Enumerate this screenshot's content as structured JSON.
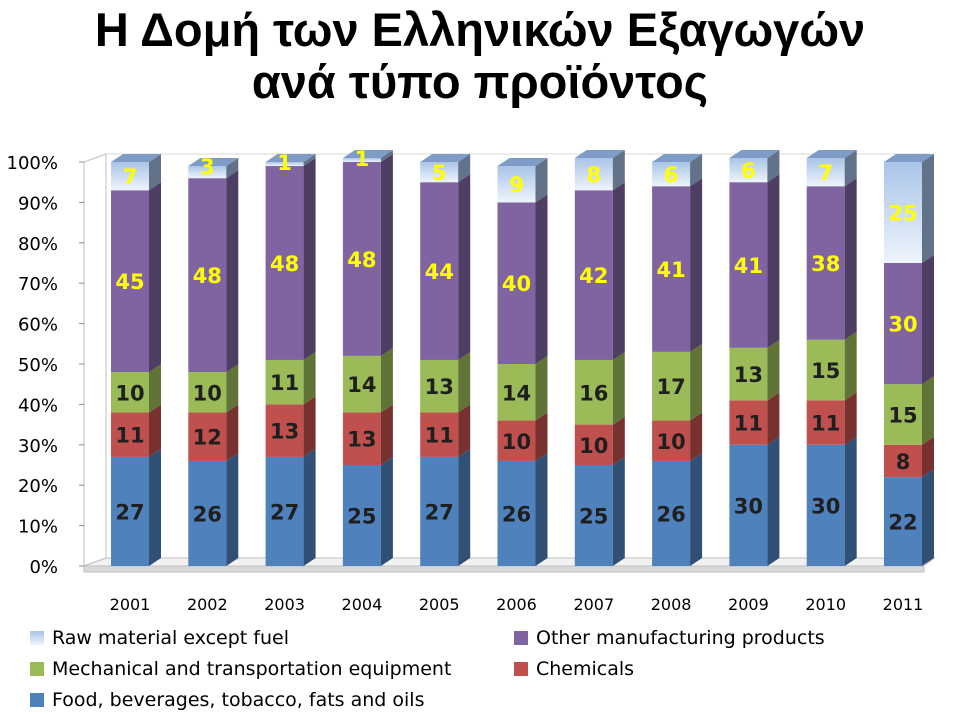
{
  "title": {
    "line1": "Η Δομή των Ελληνικών Εξαγωγών",
    "line2": "ανά τύπο προϊόντος"
  },
  "chart_data": {
    "type": "bar",
    "stacked": true,
    "normalized_percent": true,
    "categories": [
      "2001",
      "2002",
      "2003",
      "2004",
      "2005",
      "2006",
      "2007",
      "2008",
      "2009",
      "2010",
      "2011"
    ],
    "ylim": [
      0,
      100
    ],
    "yticks": [
      "0%",
      "10%",
      "20%",
      "30%",
      "40%",
      "50%",
      "60%",
      "70%",
      "80%",
      "90%",
      "100%"
    ],
    "grid": false,
    "legend_position": "bottom",
    "series": [
      {
        "name": "Food, beverages, tobacco, fats and oils",
        "color": "#4f81bd",
        "label_color": "#1f1f1f",
        "values": [
          27,
          26,
          27,
          25,
          27,
          26,
          25,
          26,
          30,
          30,
          22
        ]
      },
      {
        "name": "Chemicals",
        "color": "#c0504d",
        "label_color": "#1f1f1f",
        "values": [
          11,
          12,
          13,
          13,
          11,
          10,
          10,
          10,
          11,
          11,
          8
        ]
      },
      {
        "name": "Mechanical and transportation equipment",
        "color": "#9bbb59",
        "label_color": "#1f1f1f",
        "values": [
          10,
          10,
          11,
          14,
          13,
          14,
          16,
          17,
          13,
          15,
          15
        ]
      },
      {
        "name": "Other manufacturing products",
        "color": "#8064a2",
        "label_color": "#ffff00",
        "values": [
          45,
          48,
          48,
          48,
          44,
          40,
          42,
          41,
          41,
          38,
          30
        ]
      },
      {
        "name": "Raw material except fuel",
        "color": "#c6d9f1",
        "label_color": "#ffff00",
        "values": [
          7,
          3,
          1,
          1,
          5,
          9,
          8,
          6,
          6,
          7,
          25
        ]
      }
    ]
  }
}
